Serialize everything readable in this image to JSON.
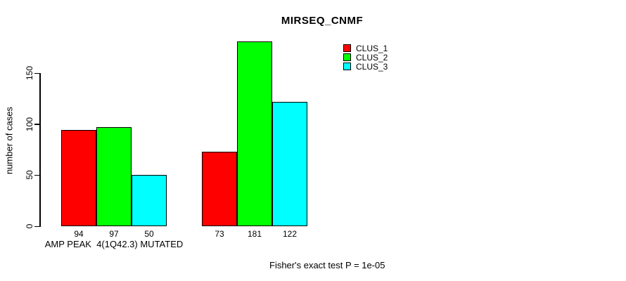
{
  "title": "MIRSEQ_CNMF",
  "chart_data": {
    "type": "bar",
    "title": "MIRSEQ_CNMF",
    "categories": [
      "AMP PEAK  4(1Q42.3) MUTATED",
      ""
    ],
    "series": [
      {
        "name": "CLUS_1",
        "color": "#ff0000",
        "values": [
          94,
          73
        ]
      },
      {
        "name": "CLUS_2",
        "color": "#00ff00",
        "values": [
          97,
          181
        ]
      },
      {
        "name": "CLUS_3",
        "color": "#00ffff",
        "values": [
          50,
          122
        ]
      }
    ],
    "ylabel": "number of cases",
    "xlabel": "",
    "yticks": [
      0,
      50,
      100,
      150
    ],
    "ylim": [
      0,
      150
    ],
    "grid": false,
    "bar_value_labels_shown": true,
    "legend_position": "top-right",
    "annotation": "Fisher's exact test P = 1e-05",
    "colors": {
      "bar_border": "#000000",
      "text": "#000000",
      "background": "#ffffff"
    }
  }
}
